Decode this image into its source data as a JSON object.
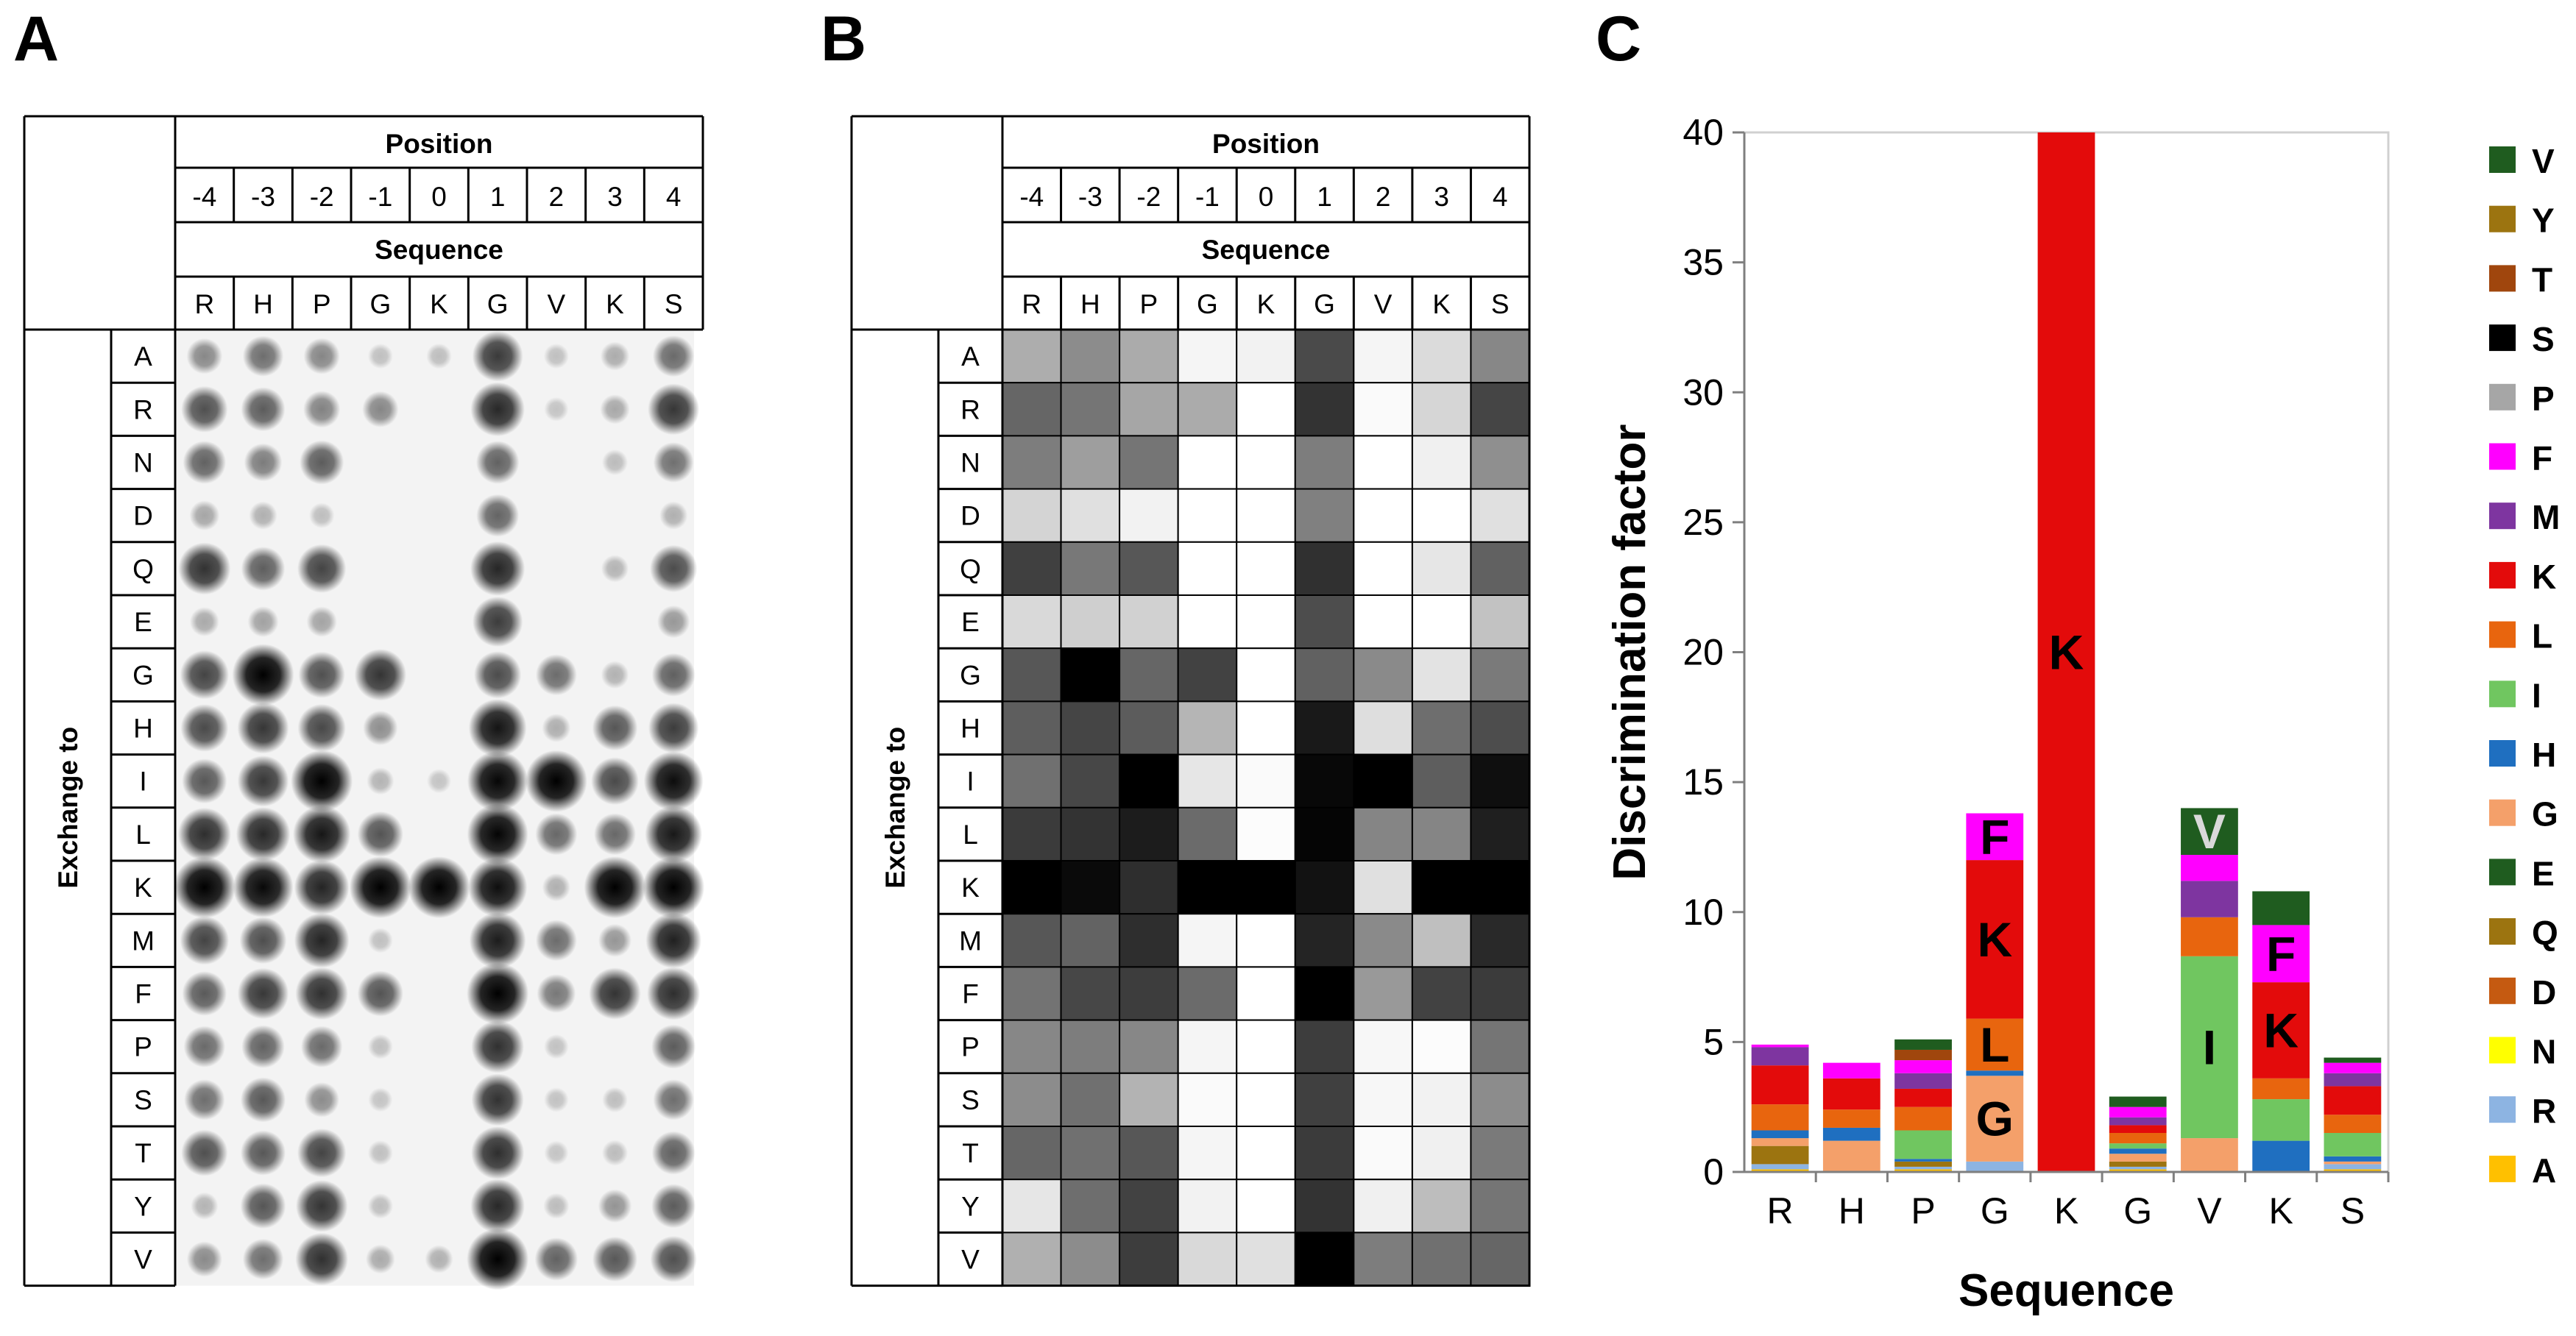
{
  "panel_labels": [
    "A",
    "B",
    "C"
  ],
  "table": {
    "position_label": "Position",
    "sequence_label": "Sequence",
    "exchange_label": "Exchange to",
    "positions": [
      "-4",
      "-3",
      "-2",
      "-1",
      "0",
      "1",
      "2",
      "3",
      "4"
    ],
    "sequence": [
      "R",
      "H",
      "P",
      "G",
      "K",
      "G",
      "V",
      "K",
      "S"
    ],
    "exchange_residues": [
      "A",
      "R",
      "N",
      "D",
      "Q",
      "E",
      "G",
      "H",
      "I",
      "L",
      "K",
      "M",
      "F",
      "P",
      "S",
      "T",
      "Y",
      "V"
    ]
  },
  "heatmap_intensity": [
    [
      0.32,
      0.45,
      0.33,
      0.04,
      0.05,
      0.71,
      0.04,
      0.14,
      0.47
    ],
    [
      0.6,
      0.54,
      0.35,
      0.33,
      0.0,
      0.8,
      0.02,
      0.16,
      0.73
    ],
    [
      0.51,
      0.38,
      0.54,
      0.0,
      0.0,
      0.51,
      0.0,
      0.06,
      0.44
    ],
    [
      0.17,
      0.12,
      0.05,
      0.0,
      0.0,
      0.5,
      0.0,
      0.0,
      0.12
    ],
    [
      0.75,
      0.53,
      0.66,
      0.0,
      0.0,
      0.81,
      0.0,
      0.1,
      0.62
    ],
    [
      0.15,
      0.19,
      0.18,
      0.0,
      0.0,
      0.7,
      0.0,
      0.0,
      0.24
    ],
    [
      0.66,
      1.0,
      0.6,
      0.74,
      0.0,
      0.62,
      0.46,
      0.11,
      0.52
    ],
    [
      0.63,
      0.73,
      0.64,
      0.29,
      0.0,
      0.9,
      0.13,
      0.57,
      0.7
    ],
    [
      0.56,
      0.72,
      1.0,
      0.1,
      0.02,
      0.97,
      1.0,
      0.63,
      0.94
    ],
    [
      0.77,
      0.8,
      0.89,
      0.58,
      0.01,
      0.98,
      0.48,
      0.48,
      0.88
    ],
    [
      1.0,
      0.96,
      0.82,
      1.0,
      1.0,
      0.93,
      0.12,
      1.0,
      1.0
    ],
    [
      0.66,
      0.61,
      0.82,
      0.04,
      0.0,
      0.86,
      0.46,
      0.25,
      0.84
    ],
    [
      0.55,
      0.72,
      0.76,
      0.58,
      0.0,
      1.0,
      0.4,
      0.74,
      0.77
    ],
    [
      0.47,
      0.51,
      0.47,
      0.04,
      0.0,
      0.76,
      0.03,
      0.01,
      0.54
    ],
    [
      0.45,
      0.56,
      0.3,
      0.02,
      0.0,
      0.75,
      0.03,
      0.05,
      0.45
    ],
    [
      0.6,
      0.56,
      0.66,
      0.04,
      0.0,
      0.77,
      0.02,
      0.06,
      0.52
    ],
    [
      0.1,
      0.57,
      0.74,
      0.05,
      0.0,
      0.8,
      0.06,
      0.26,
      0.54
    ],
    [
      0.31,
      0.45,
      0.76,
      0.15,
      0.12,
      1.0,
      0.51,
      0.56,
      0.6
    ]
  ],
  "chart_data": {
    "type": "bar",
    "stacked": true,
    "title": "",
    "xlabel": "Sequence",
    "ylabel": "Discrimination factor",
    "ylim": [
      0,
      40
    ],
    "yticks": [
      0,
      5,
      10,
      15,
      20,
      25,
      30,
      35,
      40
    ],
    "categories": [
      "R",
      "H",
      "P",
      "G",
      "K",
      "G",
      "V",
      "K",
      "S"
    ],
    "legend_position": "right",
    "series": [
      {
        "name": "A",
        "color": "#FFC000",
        "values": [
          0.1,
          0.0,
          0.1,
          0.0,
          0,
          0.1,
          0.0,
          0.0,
          0.1
        ]
      },
      {
        "name": "R",
        "color": "#8DB4E2",
        "values": [
          0.2,
          0.0,
          0.1,
          0.4,
          0,
          0.1,
          0.0,
          0.0,
          0.2
        ]
      },
      {
        "name": "N",
        "color": "#FFFF00",
        "values": [
          0.0,
          0.0,
          0.0,
          0.0,
          0,
          0.0,
          0.0,
          0.0,
          0.0
        ]
      },
      {
        "name": "D",
        "color": "#C55A11",
        "values": [
          0.0,
          0.0,
          0.0,
          0.0,
          0,
          0.0,
          0.0,
          0.0,
          0.0
        ]
      },
      {
        "name": "Q",
        "color": "#9C7410",
        "values": [
          0.7,
          0.0,
          0.2,
          0.0,
          0,
          0.2,
          0.0,
          0.0,
          0.0
        ]
      },
      {
        "name": "E",
        "color": "#1F5C1F",
        "values": [
          0.0,
          0.0,
          0.0,
          0.0,
          0,
          0.0,
          0.0,
          0.0,
          0.0
        ]
      },
      {
        "name": "G",
        "color": "#F4A06A",
        "values": [
          0.3,
          1.2,
          0.0,
          3.3,
          0,
          0.3,
          1.3,
          0.0,
          0.1
        ]
      },
      {
        "name": "H",
        "color": "#1F6FC0",
        "values": [
          0.3,
          0.5,
          0.1,
          0.2,
          0,
          0.2,
          0.0,
          1.2,
          0.2
        ]
      },
      {
        "name": "I",
        "color": "#70C660",
        "values": [
          0.0,
          0.0,
          1.1,
          0.0,
          0,
          0.2,
          7.0,
          1.6,
          0.9
        ]
      },
      {
        "name": "L",
        "color": "#E8650E",
        "values": [
          1.0,
          0.7,
          0.9,
          2.0,
          0,
          0.4,
          1.5,
          0.8,
          0.7
        ]
      },
      {
        "name": "K",
        "color": "#E30B0B",
        "values": [
          1.5,
          1.2,
          0.7,
          6.1,
          40,
          0.3,
          0.0,
          3.7,
          1.1
        ]
      },
      {
        "name": "M",
        "color": "#7E35A0",
        "values": [
          0.7,
          0.0,
          0.6,
          0.0,
          0,
          0.3,
          1.4,
          0.0,
          0.5
        ]
      },
      {
        "name": "F",
        "color": "#FF00FF",
        "values": [
          0.1,
          0.6,
          0.5,
          1.8,
          0,
          0.4,
          1.0,
          2.2,
          0.4
        ]
      },
      {
        "name": "P",
        "color": "#A6A6A6",
        "values": [
          0.0,
          0.0,
          0.0,
          0.0,
          0,
          0.0,
          0.0,
          0.0,
          0.0
        ]
      },
      {
        "name": "S",
        "color": "#000000",
        "values": [
          0.0,
          0.0,
          0.0,
          0.0,
          0,
          0.0,
          0.0,
          0.0,
          0.0
        ]
      },
      {
        "name": "T",
        "color": "#A0460D",
        "values": [
          0.0,
          0.0,
          0.4,
          0.0,
          0,
          0.0,
          0.0,
          0.0,
          0.0
        ]
      },
      {
        "name": "Y",
        "color": "#9C7410",
        "values": [
          0.0,
          0.0,
          0.0,
          0.0,
          0,
          0.0,
          0.0,
          0.0,
          0.0
        ]
      },
      {
        "name": "V",
        "color": "#1F5C1F",
        "values": [
          0.0,
          0.0,
          0.4,
          0.0,
          0,
          0.4,
          1.8,
          1.3,
          0.2
        ]
      }
    ],
    "legend_order": [
      "V",
      "Y",
      "T",
      "S",
      "P",
      "F",
      "M",
      "K",
      "L",
      "I",
      "H",
      "G",
      "E",
      "Q",
      "D",
      "N",
      "R",
      "A"
    ],
    "bar_labels": [
      {
        "bar": 3,
        "series": "G",
        "text": "G",
        "color": "#000000"
      },
      {
        "bar": 3,
        "series": "L",
        "text": "L",
        "color": "#000000"
      },
      {
        "bar": 3,
        "series": "K",
        "text": "K",
        "color": "#000000"
      },
      {
        "bar": 3,
        "series": "F",
        "text": "F",
        "color": "#000000"
      },
      {
        "bar": 4,
        "series": "K",
        "text": "K",
        "color": "#000000"
      },
      {
        "bar": 6,
        "series": "I",
        "text": "I",
        "color": "#000000"
      },
      {
        "bar": 6,
        "series": "V",
        "text": "V",
        "color": "#D9D9D9"
      },
      {
        "bar": 7,
        "series": "K",
        "text": "K",
        "color": "#000000"
      },
      {
        "bar": 7,
        "series": "F",
        "text": "F",
        "color": "#000000"
      }
    ]
  }
}
